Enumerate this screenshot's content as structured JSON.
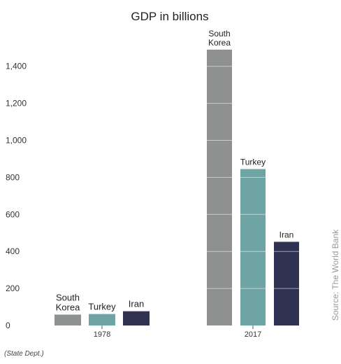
{
  "chart_data": {
    "type": "bar",
    "title": "GDP in billions",
    "groups": [
      "1978",
      "2017"
    ],
    "series": [
      {
        "name": "South Korea",
        "label_lines": [
          "South",
          "Korea"
        ],
        "color": "#8f9090",
        "values": [
          59,
          1490
        ]
      },
      {
        "name": "Turkey",
        "label_lines": [
          "Turkey"
        ],
        "color": "#6ea4a4",
        "values": [
          62,
          845
        ]
      },
      {
        "name": "Iran",
        "label_lines": [
          "Iran"
        ],
        "color": "#2f3250",
        "values": [
          77,
          452
        ]
      }
    ],
    "yticks": [
      "0",
      "200",
      "400",
      "600",
      "800",
      "1,000",
      "1,200",
      "1,400"
    ],
    "ylim": [
      0,
      1500
    ],
    "gridlines": false,
    "source": "Source: The World Bank",
    "note": "(State Dept.)"
  }
}
